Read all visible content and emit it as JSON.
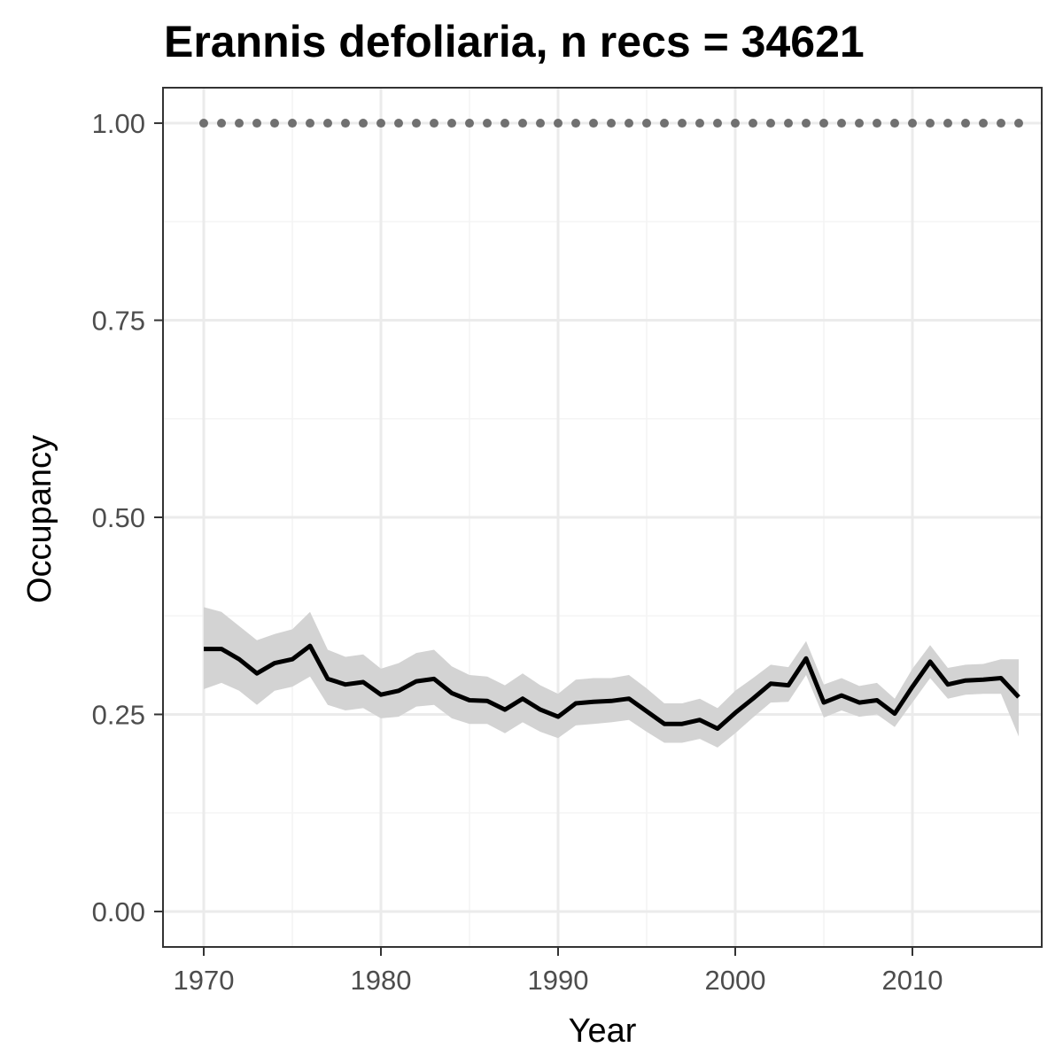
{
  "chart_data": {
    "type": "line",
    "title": "Erannis defoliaria, n recs = 34621",
    "xlabel": "Year",
    "ylabel": "Occupancy",
    "xlim": [
      1967.7,
      2017.3
    ],
    "ylim": [
      -0.045,
      1.045
    ],
    "x_ticks": [
      1970,
      1980,
      1990,
      2000,
      2010
    ],
    "x_tick_labels": [
      "1970",
      "1980",
      "1990",
      "2000",
      "2010"
    ],
    "y_ticks": [
      0,
      0.25,
      0.5,
      0.75,
      1.0
    ],
    "y_tick_labels": [
      "0.00",
      "0.25",
      "0.50",
      "0.75",
      "1.00"
    ],
    "grid": true,
    "legend": "none",
    "x": [
      1970,
      1971,
      1972,
      1973,
      1974,
      1975,
      1976,
      1977,
      1978,
      1979,
      1980,
      1981,
      1982,
      1983,
      1984,
      1985,
      1986,
      1987,
      1988,
      1989,
      1990,
      1991,
      1992,
      1993,
      1994,
      1995,
      1996,
      1997,
      1998,
      1999,
      2000,
      2001,
      2002,
      2003,
      2004,
      2005,
      2006,
      2007,
      2008,
      2009,
      2010,
      2011,
      2012,
      2013,
      2014,
      2015,
      2016
    ],
    "series": [
      {
        "values": [
          0.333,
          0.333,
          0.32,
          0.302,
          0.315,
          0.32,
          0.337,
          0.295,
          0.288,
          0.291,
          0.275,
          0.28,
          0.292,
          0.295,
          0.277,
          0.268,
          0.267,
          0.256,
          0.27,
          0.256,
          0.247,
          0.264,
          0.266,
          0.267,
          0.27,
          0.254,
          0.238,
          0.238,
          0.243,
          0.232,
          0.252,
          0.27,
          0.289,
          0.287,
          0.321,
          0.265,
          0.274,
          0.265,
          0.268,
          0.251,
          0.285,
          0.317,
          0.288,
          0.293,
          0.294,
          0.296,
          0.272
        ],
        "lower": [
          0.282,
          0.29,
          0.28,
          0.262,
          0.28,
          0.285,
          0.298,
          0.262,
          0.255,
          0.258,
          0.245,
          0.247,
          0.26,
          0.262,
          0.245,
          0.238,
          0.238,
          0.226,
          0.24,
          0.228,
          0.22,
          0.236,
          0.238,
          0.24,
          0.243,
          0.228,
          0.214,
          0.214,
          0.219,
          0.208,
          0.226,
          0.246,
          0.265,
          0.266,
          0.3,
          0.246,
          0.255,
          0.247,
          0.25,
          0.234,
          0.265,
          0.296,
          0.27,
          0.275,
          0.276,
          0.276,
          0.222
        ],
        "upper": [
          0.386,
          0.38,
          0.362,
          0.344,
          0.352,
          0.358,
          0.38,
          0.332,
          0.323,
          0.326,
          0.308,
          0.315,
          0.328,
          0.332,
          0.311,
          0.3,
          0.298,
          0.287,
          0.302,
          0.287,
          0.276,
          0.294,
          0.296,
          0.296,
          0.3,
          0.283,
          0.264,
          0.264,
          0.27,
          0.258,
          0.28,
          0.296,
          0.313,
          0.31,
          0.343,
          0.288,
          0.296,
          0.286,
          0.29,
          0.27,
          0.308,
          0.338,
          0.309,
          0.313,
          0.314,
          0.32,
          0.32
        ],
        "color": "#000000",
        "band_color": "#d3d3d3"
      },
      {
        "values": [
          1,
          1,
          1,
          1,
          1,
          1,
          1,
          1,
          1,
          1,
          1,
          1,
          1,
          1,
          1,
          1,
          1,
          1,
          1,
          1,
          1,
          1,
          1,
          1,
          1,
          1,
          1,
          1,
          1,
          1,
          1,
          1,
          1,
          1,
          1,
          1,
          1,
          1,
          1,
          1,
          1,
          1,
          1,
          1,
          1,
          1,
          1
        ],
        "style": "dotted",
        "color": "#707070"
      }
    ]
  },
  "colors": {
    "panel_border": "#333333",
    "grid_major": "#ebebeb",
    "grid_minor": "#f4f4f4",
    "tick": "#333333"
  }
}
